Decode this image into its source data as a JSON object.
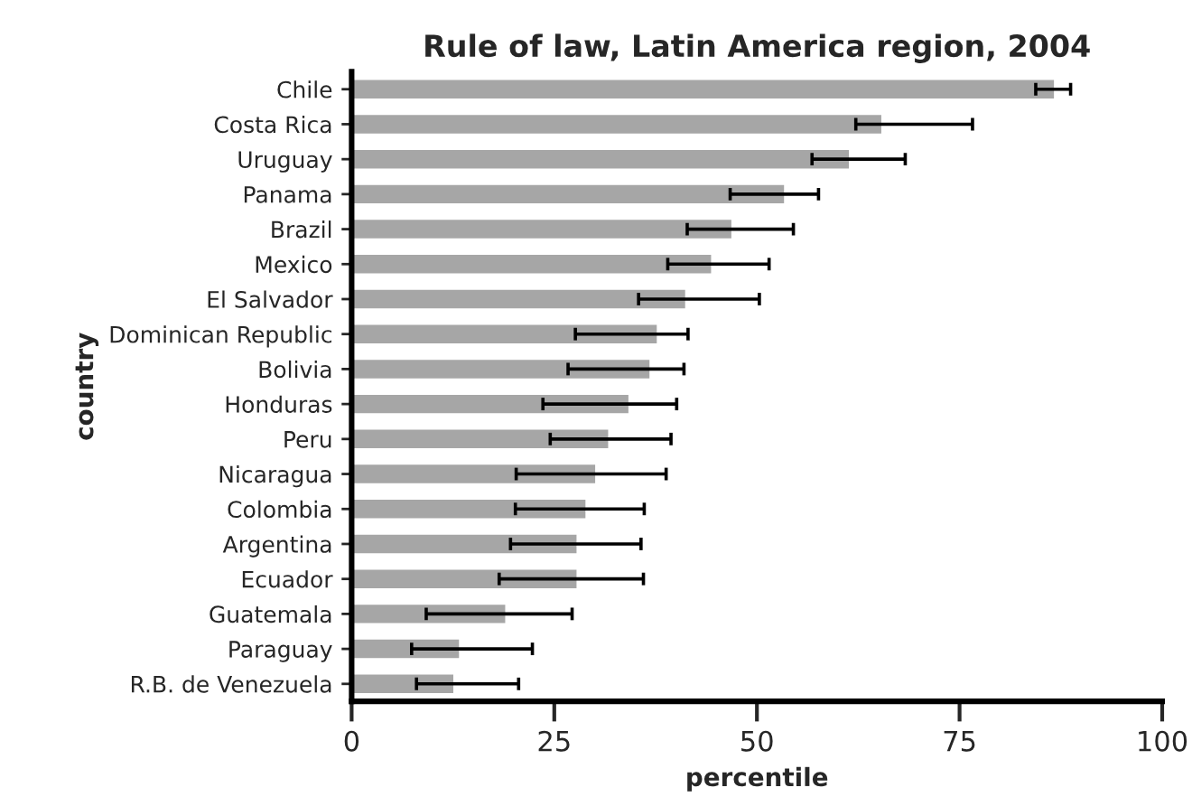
{
  "chart_data": {
    "type": "bar",
    "orientation": "horizontal",
    "title": "Rule of law, Latin America region, 2004",
    "xlabel": "percentile",
    "ylabel": "country",
    "categories": [
      "Chile",
      "Costa Rica",
      "Uruguay",
      "Panama",
      "Brazil",
      "Mexico",
      "El Salvador",
      "Dominican Republic",
      "Bolivia",
      "Honduras",
      "Peru",
      "Nicaragua",
      "Colombia",
      "Argentina",
      "Ecuador",
      "Guatemala",
      "Paraguay",
      "R.B. de Venezuela"
    ],
    "values": [
      86.8,
      65.5,
      61.5,
      53.5,
      47.0,
      44.5,
      41.3,
      37.8,
      36.9,
      34.3,
      31.8,
      30.2,
      29.0,
      27.9,
      27.9,
      19.1,
      13.4,
      12.7
    ],
    "errors": [
      [
        84.4,
        88.7
      ],
      [
        62.2,
        76.6
      ],
      [
        56.8,
        68.3
      ],
      [
        46.7,
        57.6
      ],
      [
        41.4,
        54.5
      ],
      [
        39.0,
        51.5
      ],
      [
        35.4,
        50.3
      ],
      [
        27.6,
        41.5
      ],
      [
        26.7,
        41.0
      ],
      [
        23.6,
        40.1
      ],
      [
        24.5,
        39.4
      ],
      [
        20.3,
        38.8
      ],
      [
        20.2,
        36.1
      ],
      [
        19.6,
        35.7
      ],
      [
        18.2,
        36.0
      ],
      [
        9.2,
        27.2
      ],
      [
        7.4,
        22.3
      ],
      [
        8.0,
        20.6
      ]
    ],
    "color": "#a6a6a6",
    "xlim": [
      0,
      100
    ],
    "xticks": [
      0,
      25,
      50,
      75,
      100
    ],
    "grid": false,
    "legend": false
  }
}
